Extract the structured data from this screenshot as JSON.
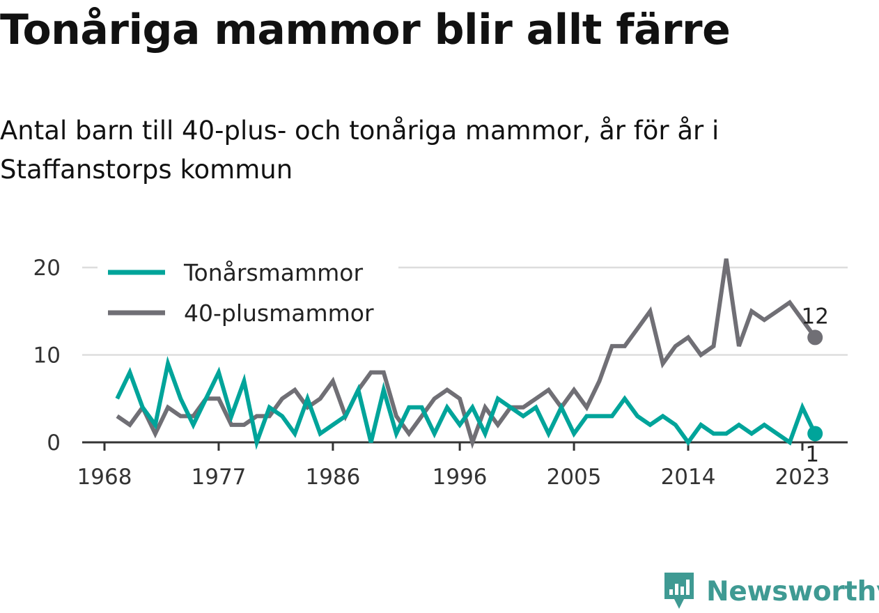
{
  "title": "Tonåriga mammor blir allt färre",
  "subtitle": "Antal barn till 40-plus- och tonåriga mammor, år för år i Staffanstorps kommun",
  "brand": {
    "name": "Newsworthy",
    "color": "#3f9a93",
    "icon": "newsworthy-logo-icon"
  },
  "chart_data": {
    "type": "line",
    "title": "Tonåriga mammor blir allt färre",
    "subtitle": "Antal barn till 40-plus- och tonåriga mammor, år för år i Staffanstorps kommun",
    "xlabel": "",
    "ylabel": "",
    "x": [
      1969,
      1970,
      1971,
      1972,
      1973,
      1974,
      1975,
      1976,
      1977,
      1978,
      1979,
      1980,
      1981,
      1982,
      1983,
      1984,
      1985,
      1986,
      1987,
      1988,
      1989,
      1990,
      1991,
      1992,
      1993,
      1994,
      1995,
      1996,
      1997,
      1998,
      1999,
      2000,
      2001,
      2002,
      2003,
      2004,
      2005,
      2006,
      2007,
      2008,
      2009,
      2010,
      2011,
      2012,
      2013,
      2014,
      2015,
      2016,
      2017,
      2018,
      2019,
      2020,
      2021,
      2022,
      2023,
      2024
    ],
    "x_ticks": [
      1968,
      1977,
      1986,
      1996,
      2005,
      2014,
      2023
    ],
    "y_ticks": [
      0,
      10,
      20
    ],
    "xlim": [
      1968,
      2024
    ],
    "ylim": [
      0,
      22
    ],
    "grid": "horizontal",
    "legend": "top-left",
    "series": [
      {
        "name": "Tonårsmammor",
        "color": "#00a49a",
        "values": [
          5,
          8,
          4,
          2,
          9,
          5,
          2,
          5,
          8,
          3,
          7,
          0,
          4,
          3,
          1,
          5,
          1,
          2,
          3,
          6,
          0,
          6,
          1,
          4,
          4,
          1,
          4,
          2,
          4,
          1,
          5,
          4,
          3,
          4,
          1,
          4,
          1,
          3,
          3,
          3,
          5,
          3,
          2,
          3,
          2,
          0,
          2,
          1,
          1,
          2,
          1,
          2,
          1,
          0,
          4,
          1
        ],
        "end_label": "1"
      },
      {
        "name": "40-plusmammor",
        "color": "#706f75",
        "values": [
          3,
          2,
          4,
          1,
          4,
          3,
          3,
          5,
          5,
          2,
          2,
          3,
          3,
          5,
          6,
          4,
          5,
          7,
          3,
          6,
          8,
          8,
          3,
          1,
          3,
          5,
          6,
          5,
          0,
          4,
          2,
          4,
          4,
          5,
          6,
          4,
          6,
          4,
          7,
          11,
          11,
          13,
          15,
          9,
          11,
          12,
          10,
          11,
          21,
          11,
          15,
          14,
          15,
          16,
          14,
          12
        ],
        "end_label": "12"
      }
    ]
  }
}
